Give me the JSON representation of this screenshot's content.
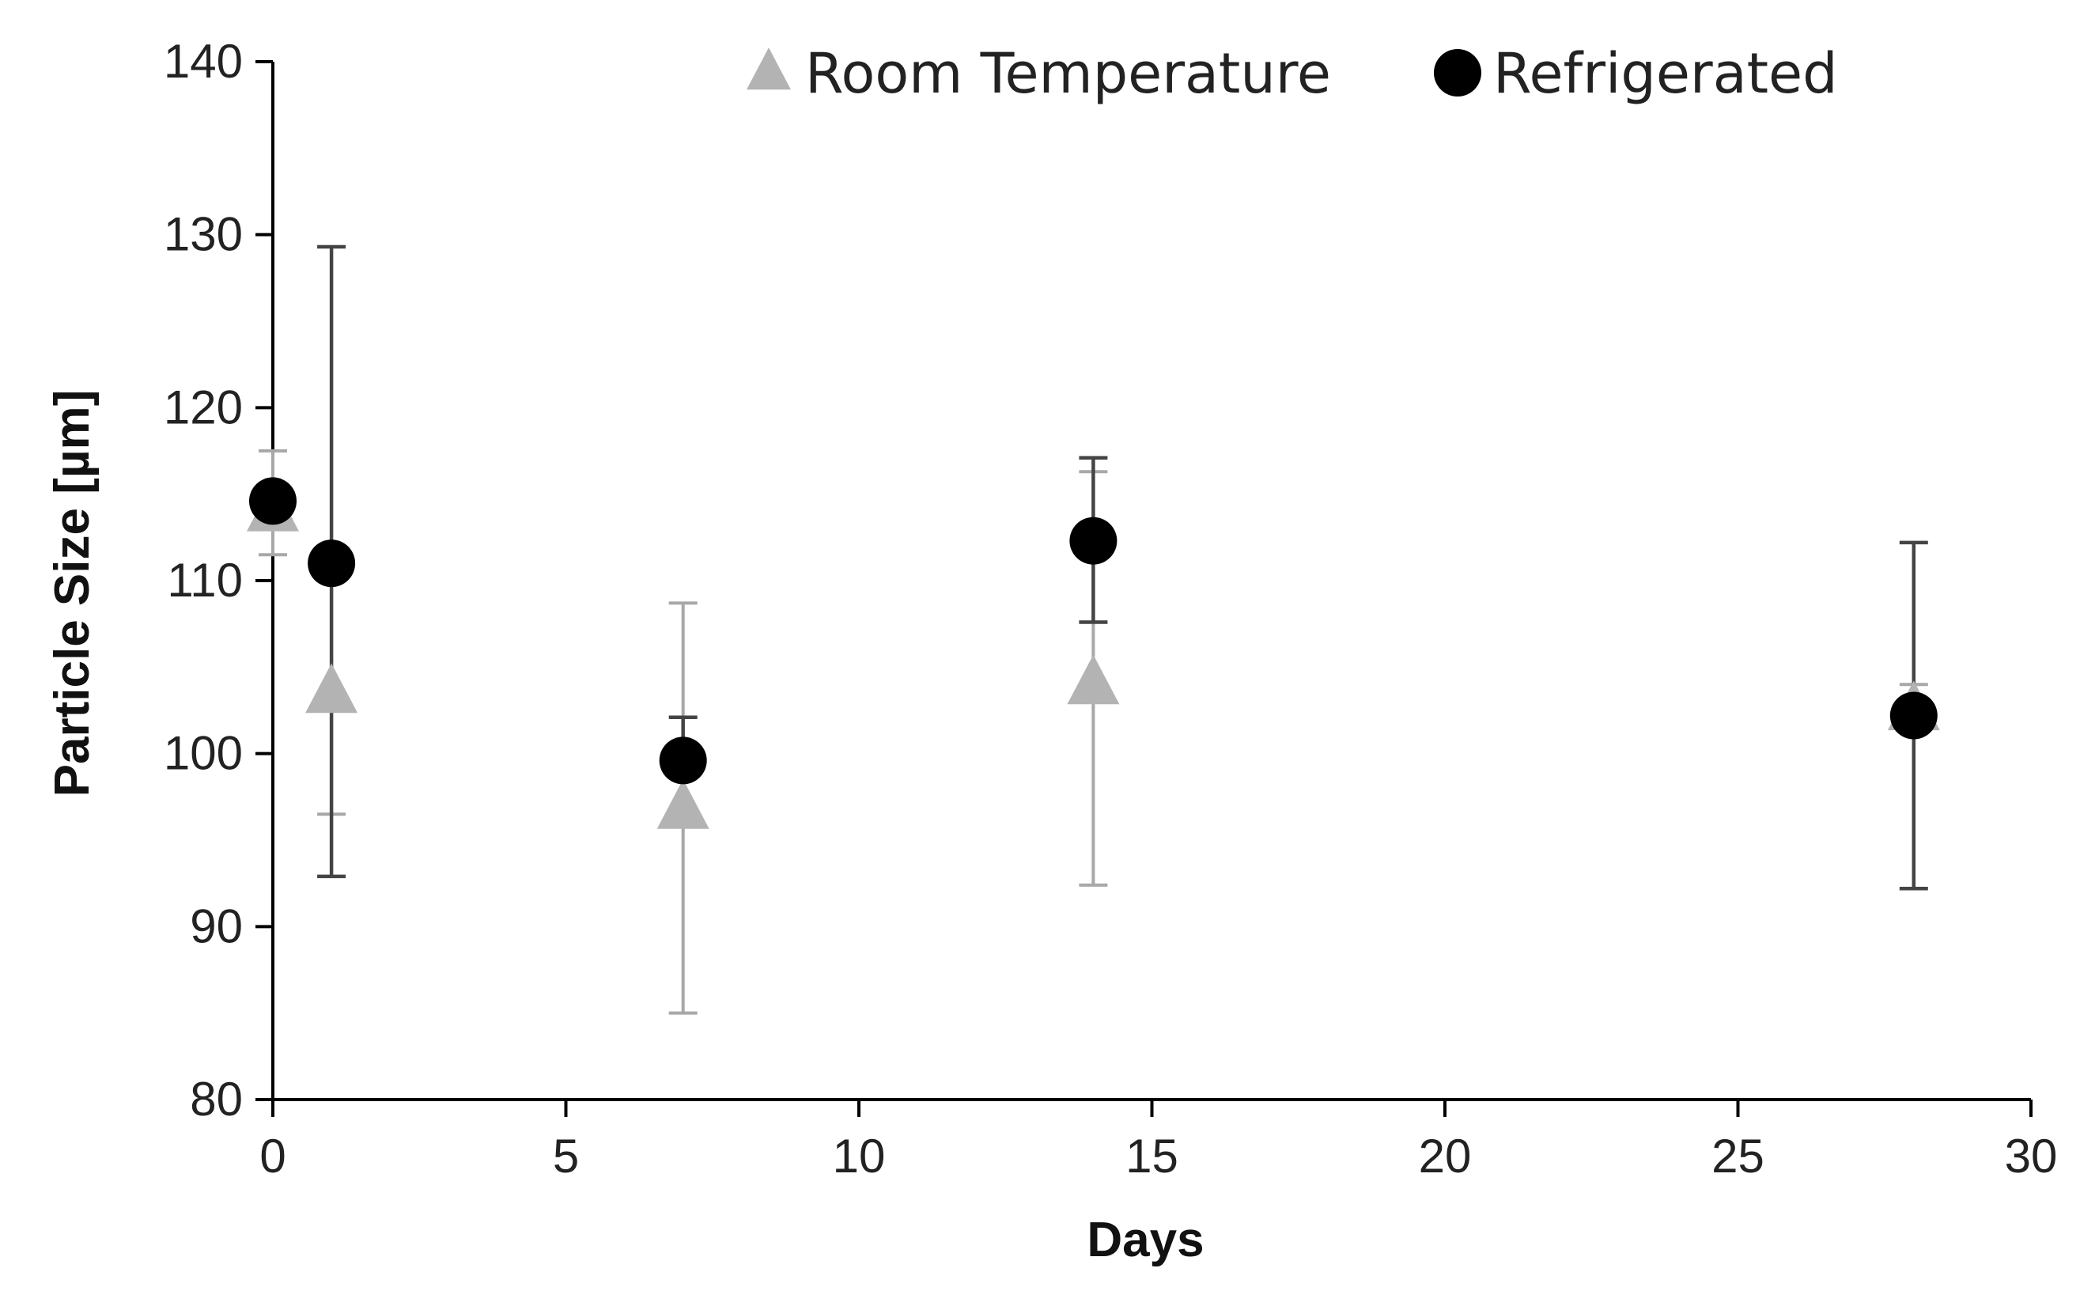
{
  "colors": {
    "room_temperature": "#b3b3b3",
    "room_temperature_error": "#a8a8a8",
    "refrigerated": "#000000",
    "refrigerated_error": "#444444",
    "axis": "#000000"
  },
  "chart_data": {
    "type": "scatter",
    "title": "",
    "xlabel": "Days",
    "ylabel": "Particle Size [µm]",
    "xlim": [
      0,
      30
    ],
    "ylim": [
      80,
      140
    ],
    "x_ticks": [
      0,
      5,
      10,
      15,
      20,
      25,
      30
    ],
    "y_ticks": [
      80,
      90,
      100,
      110,
      120,
      130,
      140
    ],
    "grid": false,
    "legend_position": "top",
    "series": [
      {
        "name": "Room Temperature",
        "marker": "triangle",
        "points": [
          {
            "x": 0,
            "y": 114,
            "y_low": 111.5,
            "y_high": 117.5
          },
          {
            "x": 1,
            "y": 103.5,
            "y_low": 96.5,
            "y_high": 110.5
          },
          {
            "x": 7,
            "y": 96.8,
            "y_low": 85,
            "y_high": 108.7
          },
          {
            "x": 14,
            "y": 104,
            "y_low": 92.4,
            "y_high": 116.3
          },
          {
            "x": 28,
            "y": 102.5,
            "y_low": 101.5,
            "y_high": 104
          }
        ]
      },
      {
        "name": "Refrigerated",
        "marker": "circle",
        "points": [
          {
            "x": 0,
            "y": 114.6,
            "y_low": 114.6,
            "y_high": 114.6
          },
          {
            "x": 1,
            "y": 111,
            "y_low": 92.9,
            "y_high": 129.3
          },
          {
            "x": 7,
            "y": 99.6,
            "y_low": 99.6,
            "y_high": 102.1
          },
          {
            "x": 14,
            "y": 112.3,
            "y_low": 107.6,
            "y_high": 117.1
          },
          {
            "x": 28,
            "y": 102.2,
            "y_low": 92.2,
            "y_high": 112.2
          }
        ]
      }
    ]
  }
}
